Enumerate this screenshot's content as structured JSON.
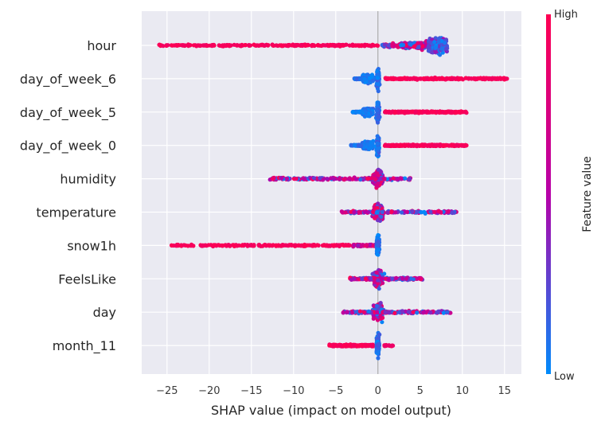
{
  "chart_data": {
    "type": "scatter",
    "subtype": "shap-beeswarm",
    "xlabel": "SHAP value (impact on model output)",
    "xlim": [
      -28,
      17
    ],
    "xticks": [
      -25,
      -20,
      -15,
      -10,
      -5,
      0,
      5,
      10,
      15
    ],
    "xtick_labels": [
      "−25",
      "−20",
      "−15",
      "−10",
      "−5",
      "0",
      "5",
      "10",
      "15"
    ],
    "grid": true,
    "colorbar": {
      "title": "Feature value",
      "high_label": "High",
      "low_label": "Low",
      "low_color": "#008bfb",
      "mid_color": "#b700a8",
      "high_color": "#ff0052"
    },
    "features": [
      {
        "name": "hour",
        "min": -26.0,
        "max": 8.6,
        "density": "wide-right"
      },
      {
        "name": "day_of_week_6",
        "min": -2.8,
        "max": 15.3,
        "density": "center-right"
      },
      {
        "name": "day_of_week_5",
        "min": -3.0,
        "max": 10.5,
        "density": "center-right"
      },
      {
        "name": "day_of_week_0",
        "min": -3.2,
        "max": 10.6,
        "density": "center-right"
      },
      {
        "name": "humidity",
        "min": -12.8,
        "max": 3.9,
        "density": "center"
      },
      {
        "name": "temperature",
        "min": -4.3,
        "max": 9.3,
        "density": "center"
      },
      {
        "name": "snow1h",
        "min": -25.0,
        "max": 0.3,
        "density": "wide-left"
      },
      {
        "name": "FeelsLike",
        "min": -3.3,
        "max": 5.3,
        "density": "center"
      },
      {
        "name": "day",
        "min": -4.2,
        "max": 8.6,
        "density": "center"
      },
      {
        "name": "month_11",
        "min": -5.8,
        "max": 1.8,
        "density": "center-left"
      }
    ]
  }
}
